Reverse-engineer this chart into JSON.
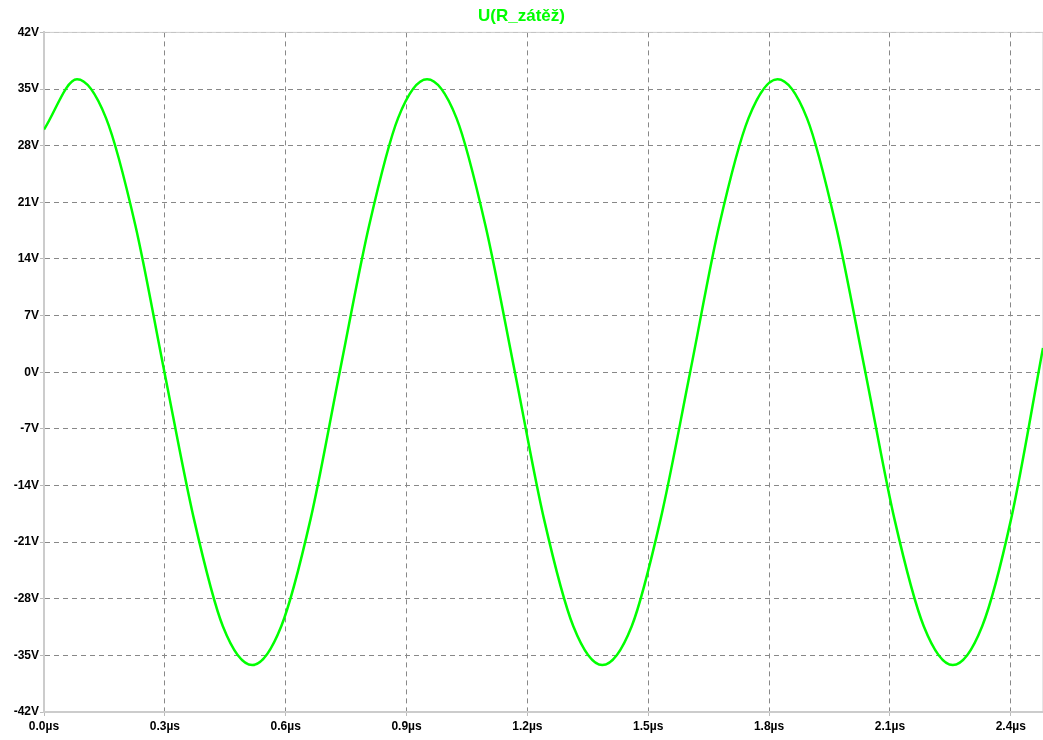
{
  "chart_data": {
    "type": "line",
    "title": "U(R_zátěž)",
    "x": [
      0,
      0.082,
      0.154,
      0.227,
      0.299,
      0.372,
      0.444,
      0.517,
      0.589,
      0.662,
      0.734,
      0.807,
      0.879,
      0.951,
      1.024,
      1.096,
      1.169,
      1.241,
      1.314,
      1.386,
      1.459,
      1.531,
      1.604,
      1.676,
      1.749,
      1.821,
      1.894,
      1.966,
      2.039,
      2.111,
      2.184,
      2.256,
      2.329,
      2.401,
      2.48
    ],
    "series": [
      {
        "color": "#00ff00",
        "values": [
          30,
          36.2,
          31.4,
          18.1,
          0,
          -18.1,
          -31.4,
          -36.2,
          -31.4,
          -18.1,
          0,
          18.1,
          31.4,
          36.2,
          31.4,
          18.1,
          0,
          -18.1,
          -31.4,
          -36.2,
          -31.4,
          -18.1,
          0,
          18.1,
          31.4,
          36.2,
          31.4,
          18.1,
          0,
          -18.1,
          -31.4,
          -36.2,
          -31.4,
          -18.1,
          3
        ]
      }
    ],
    "xlim": [
      0,
      2.48
    ],
    "xticks": [
      {
        "value": 0,
        "label": "0.0µs"
      },
      {
        "value": 0.3,
        "label": "0.3µs"
      },
      {
        "value": 0.6,
        "label": "0.6µs"
      },
      {
        "value": 0.9,
        "label": "0.9µs"
      },
      {
        "value": 1.2,
        "label": "1.2µs"
      },
      {
        "value": 1.5,
        "label": "1.5µs"
      },
      {
        "value": 1.8,
        "label": "1.8µs"
      },
      {
        "value": 2.1,
        "label": "2.1µs"
      },
      {
        "value": 2.4,
        "label": "2.4µs"
      }
    ],
    "ylim": [
      -42,
      42
    ],
    "yticks": [
      {
        "value": -42,
        "label": "-42V"
      },
      {
        "value": -35,
        "label": "-35V"
      },
      {
        "value": -28,
        "label": "-28V"
      },
      {
        "value": -21,
        "label": "-21V"
      },
      {
        "value": -14,
        "label": "-14V"
      },
      {
        "value": -7,
        "label": "-7V"
      },
      {
        "value": 0,
        "label": "0V"
      },
      {
        "value": 7,
        "label": "7V"
      },
      {
        "value": 14,
        "label": "14V"
      },
      {
        "value": 21,
        "label": "21V"
      },
      {
        "value": 28,
        "label": "28V"
      },
      {
        "value": 35,
        "label": "35V"
      },
      {
        "value": 42,
        "label": "42V"
      }
    ],
    "grid": true,
    "legend": false,
    "marker": "none",
    "line_style": "solid"
  }
}
